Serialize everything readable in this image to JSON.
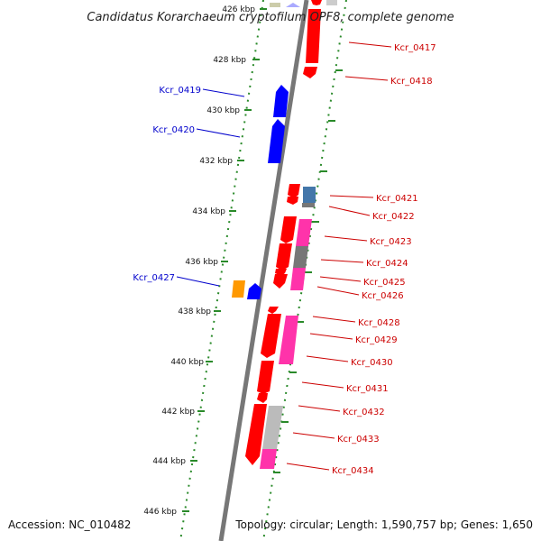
{
  "title": "Candidatus Korarchaeum cryptofilum OPF8, complete genome",
  "footer": {
    "accession": "Accession: NC_010482",
    "summary": "Topology: circular; Length: 1,590,757 bp; Genes: 1,650"
  },
  "colors": {
    "background": "#ffffff",
    "backbone": "#808080",
    "tick": "#2a8a2a",
    "forward_label": "#0000cc",
    "reverse_label": "#cc0000",
    "gene_red": "#ff0000",
    "gene_blue": "#0000ff",
    "gene_orange": "#ff9900",
    "gene_steelblue": "#4477aa",
    "gene_magenta": "#ff33aa",
    "gene_gray": "#bbbbbb",
    "gene_darkgray": "#777777"
  },
  "scale_ticks": [
    "426 kbp",
    "428 kbp",
    "430 kbp",
    "432 kbp",
    "434 kbp",
    "436 kbp",
    "438 kbp",
    "440 kbp",
    "442 kbp",
    "444 kbp",
    "446 kbp"
  ],
  "gene_labels": {
    "forward": [
      "Kcr_0419",
      "Kcr_0420",
      "Kcr_0427"
    ],
    "reverse": [
      "Kcr_0417",
      "Kcr_0418",
      "Kcr_0421",
      "Kcr_0422",
      "Kcr_0423",
      "Kcr_0424",
      "Kcr_0425",
      "Kcr_0426",
      "Kcr_0428",
      "Kcr_0429",
      "Kcr_0430",
      "Kcr_0431",
      "Kcr_0432",
      "Kcr_0433",
      "Kcr_0434"
    ]
  }
}
